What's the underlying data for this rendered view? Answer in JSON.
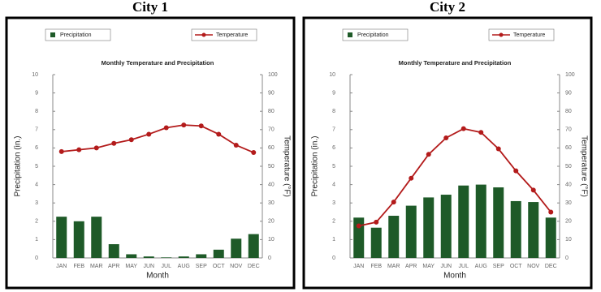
{
  "chart_data": [
    {
      "type": "combo",
      "title": "City 1",
      "subtitle": "Monthly Temperature and Precipitation",
      "x_label": "Month",
      "y_label": "Precipitation (in.)",
      "y2_label": "Temperature (°F)",
      "categories": [
        "JAN",
        "FEB",
        "MAR",
        "APR",
        "MAY",
        "JUN",
        "JUL",
        "AUG",
        "SEP",
        "OCT",
        "NOV",
        "DEC"
      ],
      "series": [
        {
          "name": "Precipitation",
          "type": "bar",
          "color": "#1e5a28",
          "values": [
            2.25,
            2.0,
            2.25,
            0.75,
            0.2,
            0.08,
            0.03,
            0.08,
            0.2,
            0.45,
            1.05,
            1.3
          ]
        },
        {
          "name": "Temperature",
          "type": "line",
          "axis": "y2",
          "color": "#b31b1b",
          "values": [
            58,
            59,
            60,
            62.5,
            64.5,
            67.5,
            71,
            72.5,
            72,
            67.5,
            61.5,
            57.5
          ]
        }
      ],
      "ylim": [
        0,
        10
      ],
      "yticks": [
        0,
        1,
        2,
        3,
        4,
        5,
        6,
        7,
        8,
        9,
        10
      ],
      "y2lim": [
        0,
        100
      ],
      "y2ticks": [
        0,
        10,
        20,
        30,
        40,
        50,
        60,
        70,
        80,
        90,
        100
      ]
    },
    {
      "type": "combo",
      "title": "City 2",
      "subtitle": "Monthly Temperature and Precipitation",
      "x_label": "Month",
      "y_label": "Precipitation (in.)",
      "y2_label": "Temperature (°F)",
      "categories": [
        "JAN",
        "FEB",
        "MAR",
        "APR",
        "MAY",
        "JUN",
        "JUL",
        "AUG",
        "SEP",
        "OCT",
        "NOV",
        "DEC"
      ],
      "series": [
        {
          "name": "Precipitation",
          "type": "bar",
          "color": "#1e5a28",
          "values": [
            2.2,
            1.65,
            2.3,
            2.85,
            3.3,
            3.45,
            3.95,
            4.0,
            3.85,
            3.1,
            3.05,
            2.2
          ]
        },
        {
          "name": "Temperature",
          "type": "line",
          "axis": "y2",
          "color": "#b31b1b",
          "values": [
            17.5,
            19.5,
            30.5,
            43.5,
            56.5,
            65.5,
            70.5,
            68.5,
            59.5,
            47.5,
            37,
            25
          ]
        }
      ],
      "ylim": [
        0,
        10
      ],
      "yticks": [
        0,
        1,
        2,
        3,
        4,
        5,
        6,
        7,
        8,
        9,
        10
      ],
      "y2lim": [
        0,
        100
      ],
      "y2ticks": [
        0,
        10,
        20,
        30,
        40,
        50,
        60,
        70,
        80,
        90,
        100
      ]
    }
  ]
}
